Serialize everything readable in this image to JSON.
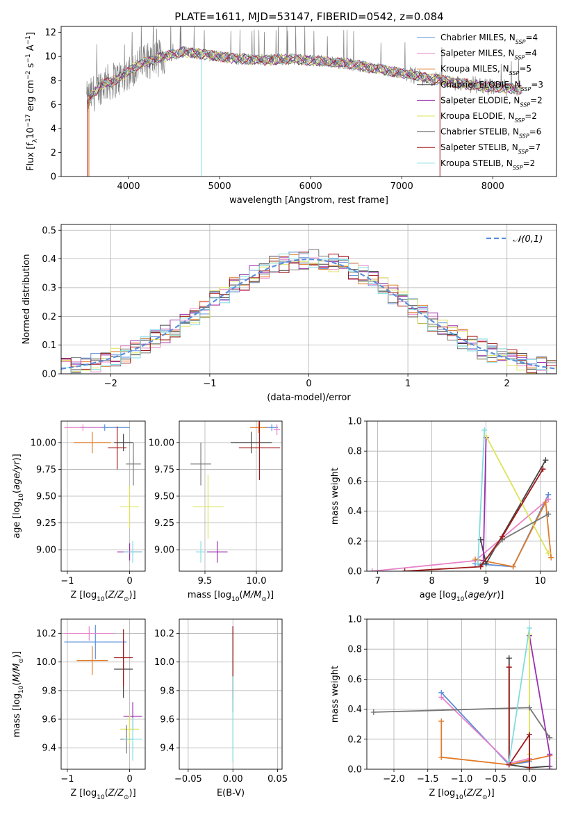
{
  "figure_title": "PLATE=1611, MJD=53147, FIBERID=0542, z=0.084",
  "series_styles": [
    {
      "color": "#5b8fd9"
    },
    {
      "color": "#e783c9"
    },
    {
      "color": "#e07b28"
    },
    {
      "color": "#444444"
    },
    {
      "color": "#9b30b0"
    },
    {
      "color": "#dde35a"
    },
    {
      "color": "#777777"
    },
    {
      "color": "#a01818"
    },
    {
      "color": "#7fdce0"
    }
  ],
  "chart_data": [
    {
      "id": "spectrum",
      "type": "line",
      "xlabel": "wavelength [Angstrom, rest frame]",
      "ylabel": "Flux [f_λ 10^-17 erg cm^-2 s^-1 A^-1]",
      "xlim": [
        3260,
        8700
      ],
      "ylim": [
        0,
        12.5
      ],
      "xticks": [
        4000,
        5000,
        6000,
        7000,
        8000
      ],
      "yticks": [
        0,
        2,
        4,
        6,
        8,
        10,
        12
      ],
      "grid": false,
      "legend_position": "right",
      "legend": [
        "Chabrier MILES, N_SSP=4",
        "Salpeter MILES, N_SSP=4",
        "Kroupa MILES, N_SSP=5",
        "Chabrier ELODIE, N_SSP=3",
        "Salpeter ELODIE, N_SSP=2",
        "Kroupa ELODIE, N_SSP=2",
        "Chabrier STELIB, N_SSP=6",
        "Salpeter STELIB, N_SSP=7",
        "Kroupa STELIB, N_SSP=2"
      ],
      "continuum": [
        [
          3550,
          6.4
        ],
        [
          3700,
          7.6
        ],
        [
          3900,
          8.2
        ],
        [
          4100,
          9.3
        ],
        [
          4300,
          9.8
        ],
        [
          4600,
          10.4
        ],
        [
          4900,
          10.1
        ],
        [
          5200,
          9.8
        ],
        [
          5500,
          9.7
        ],
        [
          5800,
          9.8
        ],
        [
          6100,
          9.6
        ],
        [
          6400,
          9.4
        ],
        [
          6700,
          9.0
        ],
        [
          7000,
          8.6
        ],
        [
          7300,
          8.2
        ],
        [
          7600,
          7.8
        ],
        [
          7900,
          7.5
        ],
        [
          8300,
          7.3
        ]
      ]
    },
    {
      "id": "residuals",
      "type": "step",
      "xlabel": "(data-model)/error",
      "ylabel": "Normed distribution",
      "xlim": [
        -2.5,
        2.5
      ],
      "ylim": [
        0,
        0.52
      ],
      "xticks": [
        -2,
        -1,
        0,
        1,
        2
      ],
      "yticks": [
        0.0,
        0.1,
        0.2,
        0.3,
        0.4,
        0.5
      ],
      "grid": true,
      "legend_position": "top-right",
      "legend": [
        "𝒩(0,1)"
      ],
      "reference_curve": "normal(0,1)"
    },
    {
      "id": "age-vs-Z",
      "type": "errorbar",
      "xlabel": "Z [log10(Z/Z⊙)]",
      "ylabel": "age [log10(age/yr)]",
      "xlim": [
        -1.1,
        0.25
      ],
      "ylim": [
        8.8,
        10.2
      ],
      "xticks": [
        -1,
        0
      ],
      "yticks": [
        9.0,
        9.25,
        9.5,
        9.75,
        10.0
      ],
      "grid": true,
      "points": [
        {
          "series": 0,
          "x": -0.4,
          "xerr": 0.4,
          "y": 10.14,
          "yerr": 0.03
        },
        {
          "series": 1,
          "x": -0.75,
          "xerr": 0.3,
          "y": 10.14,
          "yerr": 0.03
        },
        {
          "series": 2,
          "x": -0.6,
          "xerr": 0.3,
          "y": 10.0,
          "yerr": 0.1
        },
        {
          "series": 3,
          "x": -0.1,
          "xerr": 0.15,
          "y": 10.0,
          "yerr": 0.08
        },
        {
          "series": 4,
          "x": 0.0,
          "xerr": 0.2,
          "y": 8.98,
          "yerr": 0.08
        },
        {
          "series": 5,
          "x": 0.0,
          "xerr": 0.15,
          "y": 9.4,
          "yerr": 0.2
        },
        {
          "series": 6,
          "x": 0.06,
          "xerr": 0.12,
          "y": 9.8,
          "yerr": 0.2
        },
        {
          "series": 7,
          "x": -0.2,
          "xerr": 0.15,
          "y": 9.95,
          "yerr": 0.2
        },
        {
          "series": 8,
          "x": 0.05,
          "xerr": 0.15,
          "y": 8.98,
          "yerr": 0.1
        }
      ]
    },
    {
      "id": "age-vs-mass",
      "type": "errorbar",
      "xlabel": "mass [log10(M/M⊙)]",
      "ylabel": "",
      "xlim": [
        9.25,
        10.25
      ],
      "ylim": [
        8.8,
        10.2
      ],
      "xticks": [
        9.5,
        10.0
      ],
      "yticks": [
        9.0,
        9.25,
        9.5,
        9.75,
        10.0
      ],
      "grid": true,
      "points": [
        {
          "series": 0,
          "x": 10.15,
          "xerr": 0.06,
          "y": 10.14,
          "yerr": 0.03
        },
        {
          "series": 1,
          "x": 10.2,
          "xerr": 0.03,
          "y": 10.12,
          "yerr": 0.05
        },
        {
          "series": 2,
          "x": 10.02,
          "xerr": 0.08,
          "y": 10.14,
          "yerr": 0.05
        },
        {
          "series": 3,
          "x": 9.95,
          "xerr": 0.2,
          "y": 10.0,
          "yerr": 0.1
        },
        {
          "series": 4,
          "x": 9.62,
          "xerr": 0.1,
          "y": 8.98,
          "yerr": 0.1
        },
        {
          "series": 5,
          "x": 9.53,
          "xerr": 0.15,
          "y": 9.4,
          "yerr": 0.3
        },
        {
          "series": 6,
          "x": 9.46,
          "xerr": 0.1,
          "y": 9.8,
          "yerr": 0.2
        },
        {
          "series": 7,
          "x": 10.03,
          "xerr": 0.2,
          "y": 9.95,
          "yerr": 0.3
        },
        {
          "series": 8,
          "x": 9.46,
          "xerr": 0.05,
          "y": 8.98,
          "yerr": 0.1
        }
      ]
    },
    {
      "id": "weight-vs-age",
      "type": "line",
      "xlabel": "age [log10(age/yr)]",
      "ylabel": "mass weight",
      "xlim": [
        6.8,
        10.3
      ],
      "ylim": [
        0,
        1.0
      ],
      "xticks": [
        7,
        8,
        9,
        10
      ],
      "yticks": [
        0.0,
        0.2,
        0.4,
        0.6,
        0.8,
        1.0
      ],
      "grid": true,
      "series": [
        {
          "x": [
            8.8,
            9.5,
            10.15
          ],
          "y": [
            0.05,
            0.03,
            0.51
          ]
        },
        {
          "x": [
            6.9,
            8.8,
            10.15
          ],
          "y": [
            0.0,
            0.07,
            0.48
          ]
        },
        {
          "x": [
            8.8,
            9.5,
            10.1,
            10.2
          ],
          "y": [
            0.08,
            0.03,
            0.46,
            0.09
          ]
        },
        {
          "x": [
            8.9,
            9.0,
            10.1
          ],
          "y": [
            0.21,
            0.05,
            0.74
          ]
        },
        {
          "x": [
            8.95,
            9.0
          ],
          "y": [
            0.07,
            0.89
          ]
        },
        {
          "x": [
            9.0,
            10.15
          ],
          "y": [
            0.9,
            0.12
          ]
        },
        {
          "x": [
            8.9,
            9.3,
            10.15
          ],
          "y": [
            0.04,
            0.21,
            0.38
          ]
        },
        {
          "x": [
            7.5,
            8.9,
            9.3,
            10.05
          ],
          "y": [
            0.0,
            0.03,
            0.23,
            0.68
          ]
        },
        {
          "x": [
            8.85,
            8.97
          ],
          "y": [
            0.05,
            0.94
          ]
        }
      ]
    },
    {
      "id": "mass-vs-Z",
      "type": "errorbar",
      "xlabel": "Z [log10(Z/Z⊙)]",
      "ylabel": "mass [log10(M/M⊙)]",
      "xlim": [
        -1.1,
        0.25
      ],
      "ylim": [
        9.25,
        10.3
      ],
      "xticks": [
        -1,
        0
      ],
      "yticks": [
        9.4,
        9.6,
        9.8,
        10.0,
        10.2
      ],
      "grid": true,
      "points": [
        {
          "series": 0,
          "x": -0.55,
          "xerr": 0.5,
          "y": 10.14,
          "yerr": 0.12
        },
        {
          "series": 1,
          "x": -0.65,
          "xerr": 0.4,
          "y": 10.2,
          "yerr": 0.05
        },
        {
          "series": 2,
          "x": -0.6,
          "xerr": 0.25,
          "y": 10.01,
          "yerr": 0.1
        },
        {
          "series": 3,
          "x": -0.1,
          "xerr": 0.15,
          "y": 9.95,
          "yerr": 0.2
        },
        {
          "series": 4,
          "x": 0.05,
          "xerr": 0.15,
          "y": 9.62,
          "yerr": 0.1
        },
        {
          "series": 5,
          "x": 0.0,
          "xerr": 0.15,
          "y": 9.53,
          "yerr": 0.1
        },
        {
          "series": 6,
          "x": -0.05,
          "xerr": 0.1,
          "y": 9.46,
          "yerr": 0.1
        },
        {
          "series": 7,
          "x": -0.1,
          "xerr": 0.15,
          "y": 10.03,
          "yerr": 0.2
        },
        {
          "series": 8,
          "x": 0.05,
          "xerr": 0.15,
          "y": 9.46,
          "yerr": 0.15
        }
      ]
    },
    {
      "id": "mass-vs-EBV",
      "type": "errorbar",
      "xlabel": "E(B-V)",
      "ylabel": "",
      "xlim": [
        -0.06,
        0.055
      ],
      "ylim": [
        9.25,
        10.3
      ],
      "xticks": [
        -0.05,
        0.0,
        0.05
      ],
      "yticks": [
        9.4,
        9.6,
        9.8,
        10.0,
        10.2
      ],
      "grid": true,
      "points": [
        {
          "series": 3,
          "x": 0.0,
          "xerr": 0,
          "y": 9.95,
          "yerr": 0.3
        },
        {
          "series": 7,
          "x": 0.0,
          "xerr": 0,
          "y": 10.0,
          "yerr": 0.25
        },
        {
          "series": 8,
          "x": 0.0,
          "xerr": 0,
          "y": 9.6,
          "yerr": 0.3
        }
      ]
    },
    {
      "id": "weight-vs-Z",
      "type": "line",
      "xlabel": "Z [log10(Z/Z⊙)]",
      "ylabel": "mass weight",
      "xlim": [
        -2.4,
        0.4
      ],
      "ylim": [
        0,
        1.0
      ],
      "xticks": [
        -2.0,
        -1.5,
        -1.0,
        -0.5,
        0.0
      ],
      "yticks": [
        0.0,
        0.2,
        0.4,
        0.6,
        0.8,
        1.0
      ],
      "grid": true,
      "series": [
        {
          "x": [
            -1.3,
            -0.3,
            0.0
          ],
          "y": [
            0.51,
            0.03,
            0.05
          ]
        },
        {
          "x": [
            -1.3,
            -0.3,
            0.0
          ],
          "y": [
            0.48,
            0.04,
            0.07
          ]
        },
        {
          "x": [
            -1.3,
            -1.3,
            -0.3,
            0.3
          ],
          "y": [
            0.32,
            0.08,
            0.03,
            0.09
          ]
        },
        {
          "x": [
            -0.3,
            -0.3,
            0.0,
            0.3
          ],
          "y": [
            0.74,
            0.03,
            0.01,
            0.02
          ]
        },
        {
          "x": [
            0.0,
            0.3,
            0.3
          ],
          "y": [
            0.89,
            0.1,
            0.0
          ]
        },
        {
          "x": [
            0.0,
            0.0
          ],
          "y": [
            0.9,
            0.1
          ]
        },
        {
          "x": [
            -2.3,
            0.0,
            0.3
          ],
          "y": [
            0.38,
            0.41,
            0.21
          ]
        },
        {
          "x": [
            -0.3,
            -0.3,
            0.0,
            0.0
          ],
          "y": [
            0.68,
            0.03,
            0.23,
            0.01
          ]
        },
        {
          "x": [
            -0.3,
            0.0
          ],
          "y": [
            0.05,
            0.94
          ]
        }
      ]
    }
  ]
}
